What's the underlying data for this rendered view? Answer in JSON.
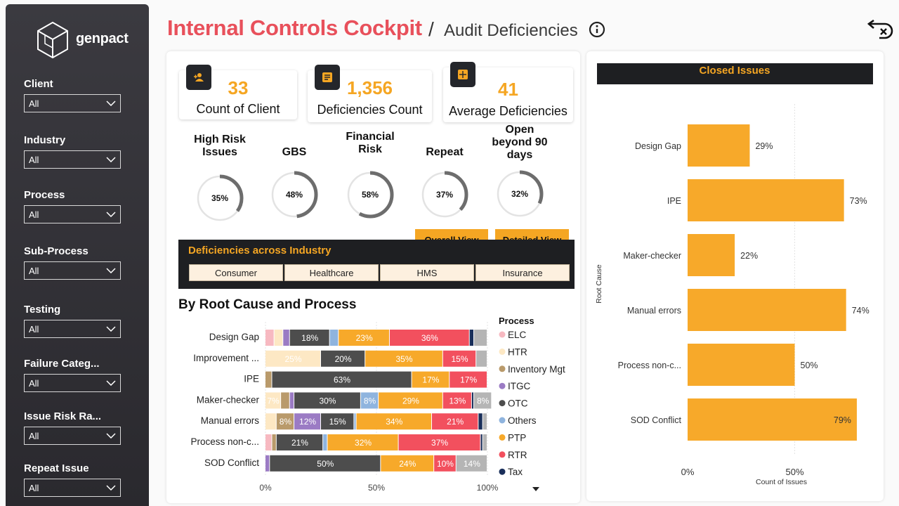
{
  "brand": {
    "name": "genpact"
  },
  "header": {
    "title": "Internal Controls Cockpit",
    "separator": "/",
    "subtitle": "Audit Deficiencies"
  },
  "filters": [
    {
      "label": "Client",
      "value": "All"
    },
    {
      "label": "Industry",
      "value": "All"
    },
    {
      "label": "Process",
      "value": "All"
    },
    {
      "label": "Sub-Process",
      "value": "All"
    },
    {
      "label": "Testing",
      "value": "All"
    },
    {
      "label": "Failure Categ...",
      "value": "All"
    },
    {
      "label": "Issue Risk Ra...",
      "value": "All"
    },
    {
      "label": "Repeat Issue",
      "value": "All"
    }
  ],
  "kpis": [
    {
      "value": "33",
      "label": "Count of Client"
    },
    {
      "value": "1,356",
      "label": "Deficiencies Count"
    },
    {
      "value": "41",
      "label": "Average Deficiencies"
    }
  ],
  "gauges": [
    {
      "label": "High Risk Issues",
      "value": "35%",
      "pct": 35
    },
    {
      "label": "GBS",
      "value": "48%",
      "pct": 48
    },
    {
      "label": "Financial Risk",
      "value": "58%",
      "pct": 58
    },
    {
      "label": "Repeat",
      "value": "37%",
      "pct": 37
    },
    {
      "label": "Open beyond 90 days",
      "value": "32%",
      "pct": 32
    }
  ],
  "view_buttons": {
    "overall": "Overall View",
    "detailed": "Detailed View"
  },
  "industry": {
    "title": "Deficiencies across Industry",
    "buttons": [
      "Consumer",
      "Healthcare",
      "HMS",
      "Insurance"
    ]
  },
  "root_cause_title": "By Root Cause and Process",
  "colors": {
    "accent": "#f5a623",
    "title_red": "#e8505b",
    "ELC": "#f7b9c1",
    "HTR": "#fde8c4",
    "Inventory Mgt": "#b99a6b",
    "ITGC": "#9b7bc4",
    "OTC": "#4d4d4d",
    "Others": "#8fb4de",
    "PTP": "#f7a92a",
    "RTR": "#f2505e",
    "Tax": "#1a2f5a",
    "Rest": "#b5b5b5"
  },
  "chart_data": [
    {
      "type": "bar",
      "title": "By Root Cause and Process",
      "orientation": "horizontal-stacked-100",
      "legend_title": "Process",
      "legend": [
        "ELC",
        "HTR",
        "Inventory Mgt",
        "ITGC",
        "OTC",
        "Others",
        "PTP",
        "RTR",
        "Tax"
      ],
      "xticks": [
        "0%",
        "50%",
        "100%"
      ],
      "xlim": [
        0,
        100
      ],
      "categories": [
        "Design Gap",
        "Improvement ...",
        "IPE",
        "Maker-checker",
        "Manual errors",
        "Process non-c...",
        "SOD Conflict"
      ],
      "rows": [
        [
          [
            "ELC",
            4,
            ""
          ],
          [
            "HTR",
            4,
            ""
          ],
          [
            "ITGC",
            3,
            ""
          ],
          [
            "OTC",
            18,
            "18%"
          ],
          [
            "Others",
            4,
            ""
          ],
          [
            "PTP",
            23,
            "23%"
          ],
          [
            "RTR",
            36,
            "36%"
          ],
          [
            "Tax",
            2,
            ""
          ],
          [
            "Rest",
            6,
            ""
          ]
        ],
        [
          [
            "HTR",
            25,
            "25%"
          ],
          [
            "OTC",
            20,
            "20%"
          ],
          [
            "PTP",
            35,
            "35%"
          ],
          [
            "RTR",
            15,
            "15%"
          ],
          [
            "Rest",
            5,
            ""
          ]
        ],
        [
          [
            "Inventory Mgt",
            3,
            ""
          ],
          [
            "OTC",
            63,
            "63%"
          ],
          [
            "PTP",
            17,
            "17%"
          ],
          [
            "RTR",
            17,
            "17%"
          ]
        ],
        [
          [
            "HTR",
            7,
            "7%"
          ],
          [
            "Inventory Mgt",
            4,
            ""
          ],
          [
            "ITGC",
            2,
            ""
          ],
          [
            "OTC",
            30,
            "30%"
          ],
          [
            "Others",
            8,
            "8%"
          ],
          [
            "PTP",
            29,
            "29%"
          ],
          [
            "RTR",
            13,
            "13%"
          ],
          [
            "Tax",
            1,
            ""
          ],
          [
            "Rest",
            8,
            "8%"
          ]
        ],
        [
          [
            "HTR",
            5,
            ""
          ],
          [
            "Inventory Mgt",
            8,
            "8%"
          ],
          [
            "ITGC",
            12,
            "12%"
          ],
          [
            "OTC",
            15,
            "15%"
          ],
          [
            "Others",
            1,
            ""
          ],
          [
            "PTP",
            34,
            "34%"
          ],
          [
            "RTR",
            21,
            "21%"
          ],
          [
            "Tax",
            2,
            ""
          ],
          [
            "Rest",
            2,
            ""
          ]
        ],
        [
          [
            "ELC",
            3,
            ""
          ],
          [
            "Inventory Mgt",
            2,
            ""
          ],
          [
            "OTC",
            21,
            "21%"
          ],
          [
            "Others",
            2,
            ""
          ],
          [
            "PTP",
            32,
            "32%"
          ],
          [
            "RTR",
            37,
            "37%"
          ],
          [
            "Tax",
            1,
            ""
          ],
          [
            "Rest",
            2,
            ""
          ]
        ],
        [
          [
            "ITGC",
            2,
            ""
          ],
          [
            "OTC",
            50,
            "50%"
          ],
          [
            "PTP",
            24,
            "24%"
          ],
          [
            "RTR",
            10,
            "10%"
          ],
          [
            "Rest",
            14,
            "14%"
          ]
        ]
      ]
    },
    {
      "type": "bar",
      "title": "Closed Issues",
      "orientation": "horizontal",
      "xlabel": "Count of Issues",
      "ylabel": "Root Cause",
      "categories": [
        "Design Gap",
        "IPE",
        "Maker-checker",
        "Manual errors",
        "Process non-c...",
        "SOD Conflict"
      ],
      "values": [
        29,
        73,
        22,
        74,
        50,
        79
      ],
      "labels": [
        "29%",
        "73%",
        "22%",
        "74%",
        "50%",
        "79%"
      ],
      "xticks": [
        "0%",
        "50%"
      ],
      "xlim": [
        0,
        100
      ]
    }
  ]
}
